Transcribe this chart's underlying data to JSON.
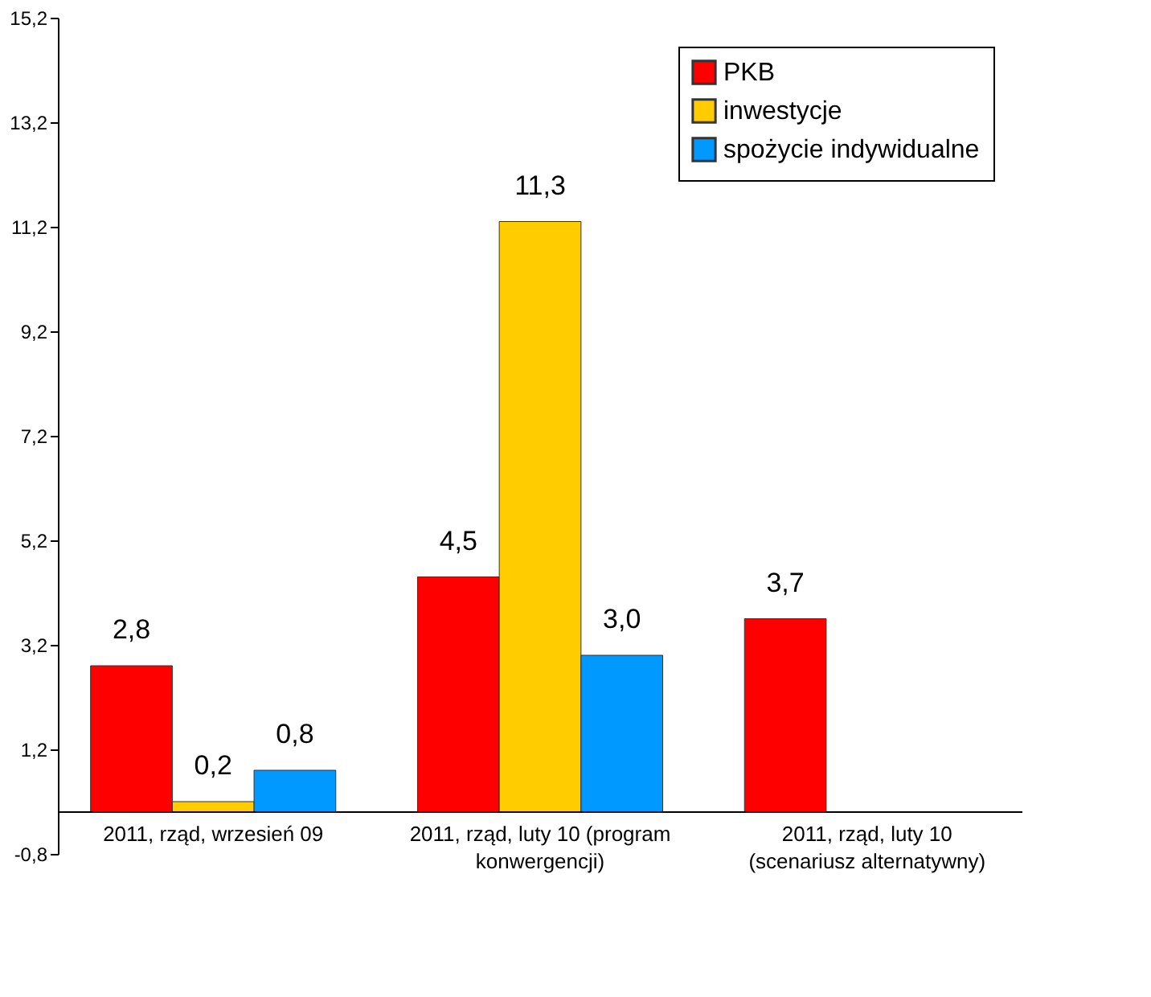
{
  "chart_data": {
    "type": "bar",
    "categories": [
      "2011, rząd, wrzesień 09",
      "2011, rząd, luty 10 (program konwergencji)",
      "2011, rząd, luty 10 (scenariusz alternatywny)"
    ],
    "series": [
      {
        "name": "PKB",
        "color": "#ff0000",
        "values": [
          2.8,
          4.5,
          3.7
        ],
        "value_labels": [
          "2,8",
          "4,5",
          "3,7"
        ]
      },
      {
        "name": "inwestycje",
        "color": "#ffcc00",
        "values": [
          0.2,
          11.3,
          null
        ],
        "value_labels": [
          "0,2",
          "11,3",
          null
        ]
      },
      {
        "name": "spożycie indywidualne",
        "color": "#0099ff",
        "values": [
          0.8,
          3.0,
          null
        ],
        "value_labels": [
          "0,8",
          "3,0",
          null
        ]
      }
    ],
    "ylim": [
      -0.8,
      15.2
    ],
    "yticks": [
      {
        "value": -0.8,
        "label": "-0,8"
      },
      {
        "value": 1.2,
        "label": "1,2"
      },
      {
        "value": 3.2,
        "label": "3,2"
      },
      {
        "value": 5.2,
        "label": "5,2"
      },
      {
        "value": 7.2,
        "label": "7,2"
      },
      {
        "value": 9.2,
        "label": "9,2"
      },
      {
        "value": 11.2,
        "label": "11,2"
      },
      {
        "value": 13.2,
        "label": "13,2"
      },
      {
        "value": 15.2,
        "label": "15,2"
      }
    ],
    "grid": false,
    "legend": "top right"
  }
}
